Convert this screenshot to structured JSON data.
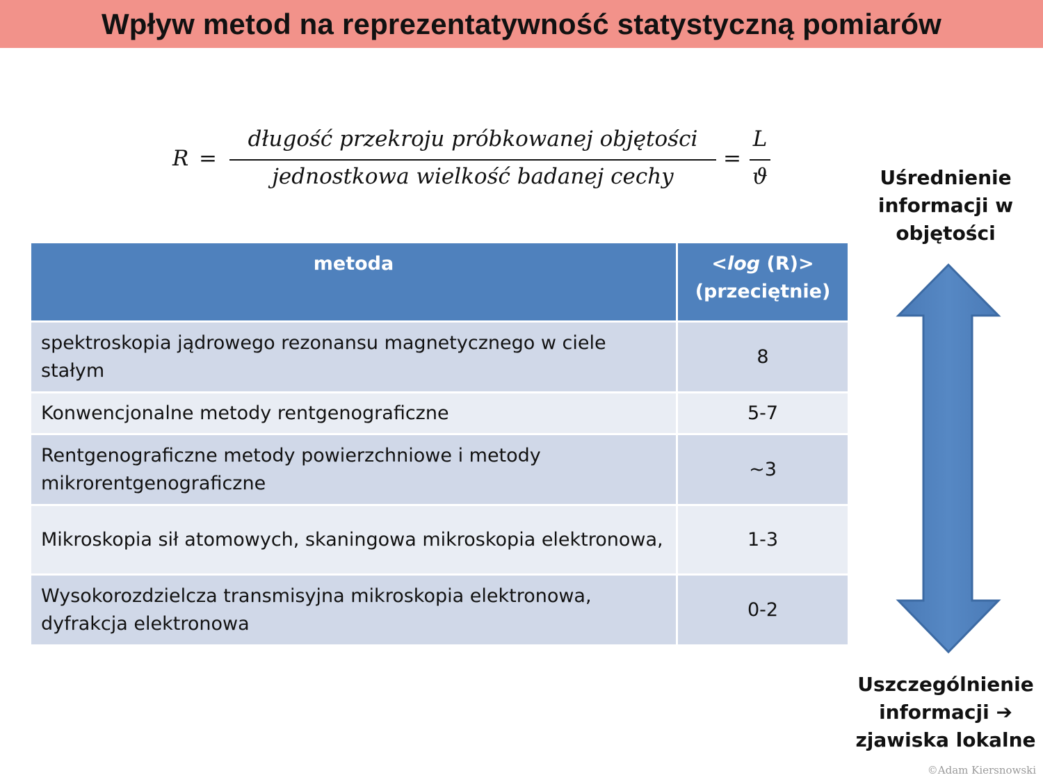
{
  "slide": {
    "title": "Wpływ metod na reprezentatywność statystyczną pomiarów",
    "copyright": "©Adam Kiersnowski",
    "accent_color": "#f2928a",
    "header_color": "#4f81bd"
  },
  "formula": {
    "lhs": "R",
    "equals": "=",
    "numerator": "długość przekroju próbkowanej objętości",
    "denominator": "jednostkowa wielkość badanej cechy",
    "short_numerator": "L",
    "short_denominator": "ϑ"
  },
  "table": {
    "headers": {
      "method": "metoda",
      "log_prefix": "<",
      "log_italic": "log",
      "log_suffix": " (R)>",
      "log_line2": "(przeciętnie)"
    },
    "rows": [
      {
        "method": "spektroskopia jądrowego rezonansu magnetycznego w ciele stałym",
        "value": "8"
      },
      {
        "method": "Konwencjonalne metody rentgenograficzne",
        "value": "5-7"
      },
      {
        "method": "Rentgenograficzne metody powierzchniowe i metody mikrorentgenograficzne",
        "value": "~3"
      },
      {
        "method": "Mikroskopia sił atomowych, skaningowa mikroskopia elektronowa,",
        "value": "1-3"
      },
      {
        "method": "Wysokorozdzielcza transmisyjna mikroskopia elektronowa, dyfrakcja elektronowa",
        "value": "0-2"
      }
    ]
  },
  "arrow": {
    "color": "#4f81bd",
    "top_label_lines": [
      "Uśrednienie",
      "informacji w",
      "objętości"
    ],
    "bottom_label_lines": [
      "Uszczególnienie",
      "informacji ➔",
      "zjawiska lokalne"
    ]
  }
}
